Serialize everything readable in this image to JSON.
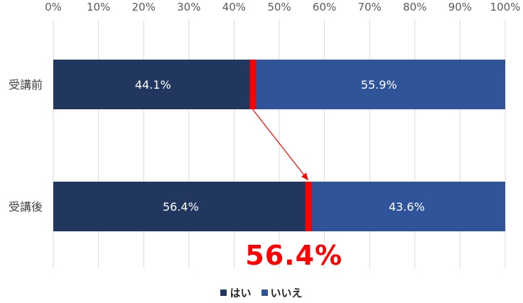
{
  "chart_data": {
    "type": "bar",
    "orientation": "horizontal",
    "stacked": "100%",
    "categories": [
      "受講前",
      "受講後"
    ],
    "series": [
      {
        "name": "はい",
        "values": [
          44.1,
          56.4
        ],
        "labels": [
          "44.1%",
          "56.4%"
        ],
        "color": "#22375f"
      },
      {
        "name": "いいえ",
        "values": [
          55.9,
          43.6
        ],
        "labels": [
          "55.9%",
          "43.6%"
        ],
        "color": "#30549a"
      }
    ],
    "xlim": [
      0,
      100
    ],
    "xticks": [
      "0%",
      "10%",
      "20%",
      "30%",
      "40%",
      "50%",
      "60%",
      "70%",
      "80%",
      "90%",
      "100%"
    ],
    "grid": true,
    "legend": "bottom",
    "marker_color": "#ff0000",
    "arrow_color": "#ff0000",
    "annotation": "56.4%"
  }
}
